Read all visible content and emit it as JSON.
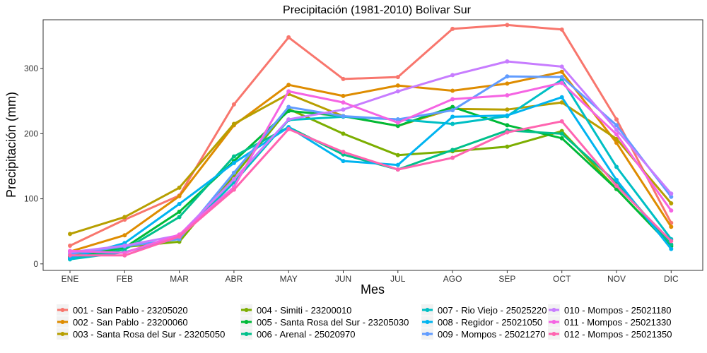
{
  "chart_data": {
    "type": "line",
    "title": "Precipitación (1981-2010)  Bolivar Sur",
    "xlabel": "Mes",
    "ylabel": "Precipitación (mm)",
    "categories": [
      "ENE",
      "FEB",
      "MAR",
      "ABR",
      "MAY",
      "JUN",
      "JUL",
      "AGO",
      "SEP",
      "OCT",
      "NOV",
      "DIC"
    ],
    "ylim": [
      -10,
      375
    ],
    "yticks": [
      0,
      100,
      200,
      300
    ],
    "grid": false,
    "legend_position": "bottom",
    "series": [
      {
        "name": "001 - San Pablo - 23205020",
        "color": "#F8766D",
        "values": [
          28,
          68,
          105,
          245,
          348,
          284,
          287,
          361,
          367,
          360,
          222,
          63
        ]
      },
      {
        "name": "002 - San Pablo - 23200060",
        "color": "#DE8C00",
        "values": [
          19,
          44,
          104,
          213,
          275,
          258,
          274,
          266,
          277,
          295,
          186,
          57
        ]
      },
      {
        "name": "003 - Santa Rosa del Sur - 23205050",
        "color": "#B79F00",
        "values": [
          46,
          72,
          117,
          215,
          261,
          227,
          212,
          238,
          237,
          248,
          192,
          93
        ]
      },
      {
        "name": "004 - Simiti - 23200010",
        "color": "#7CAE00",
        "values": [
          12,
          26,
          34,
          135,
          238,
          200,
          167,
          173,
          180,
          204,
          115,
          28
        ]
      },
      {
        "name": "005 - Santa Rosa del Sur - 23205030",
        "color": "#00BA38",
        "values": [
          11,
          25,
          80,
          158,
          235,
          227,
          212,
          241,
          213,
          193,
          115,
          27
        ]
      },
      {
        "name": "006 - Arenal - 25020970",
        "color": "#00C08B",
        "values": [
          8,
          22,
          72,
          165,
          210,
          168,
          145,
          175,
          205,
          200,
          125,
          30
        ]
      },
      {
        "name": "007 - Rio Viejo - 25025220",
        "color": "#00BFC4",
        "values": [
          7,
          18,
          40,
          125,
          221,
          226,
          222,
          215,
          227,
          283,
          149,
          38
        ]
      },
      {
        "name": "008 - Regidor - 25021050",
        "color": "#00B4F0",
        "values": [
          9,
          32,
          92,
          155,
          210,
          158,
          152,
          226,
          228,
          256,
          129,
          23
        ]
      },
      {
        "name": "009 - Mompos - 25021270",
        "color": "#619CFF",
        "values": [
          15,
          27,
          38,
          140,
          241,
          227,
          222,
          236,
          288,
          287,
          213,
          103
        ]
      },
      {
        "name": "010 - Mompos - 25021180",
        "color": "#C77CFF",
        "values": [
          18,
          28,
          44,
          130,
          222,
          237,
          265,
          290,
          311,
          303,
          206,
          108
        ]
      },
      {
        "name": "011 - Mompos - 25021330",
        "color": "#F564E3",
        "values": [
          20,
          17,
          45,
          118,
          265,
          248,
          217,
          253,
          259,
          278,
          199,
          82
        ]
      },
      {
        "name": "012 - Mompos - 25021350",
        "color": "#FF64B0",
        "values": [
          13,
          13,
          42,
          114,
          207,
          172,
          145,
          163,
          202,
          219,
          120,
          35
        ]
      }
    ]
  }
}
